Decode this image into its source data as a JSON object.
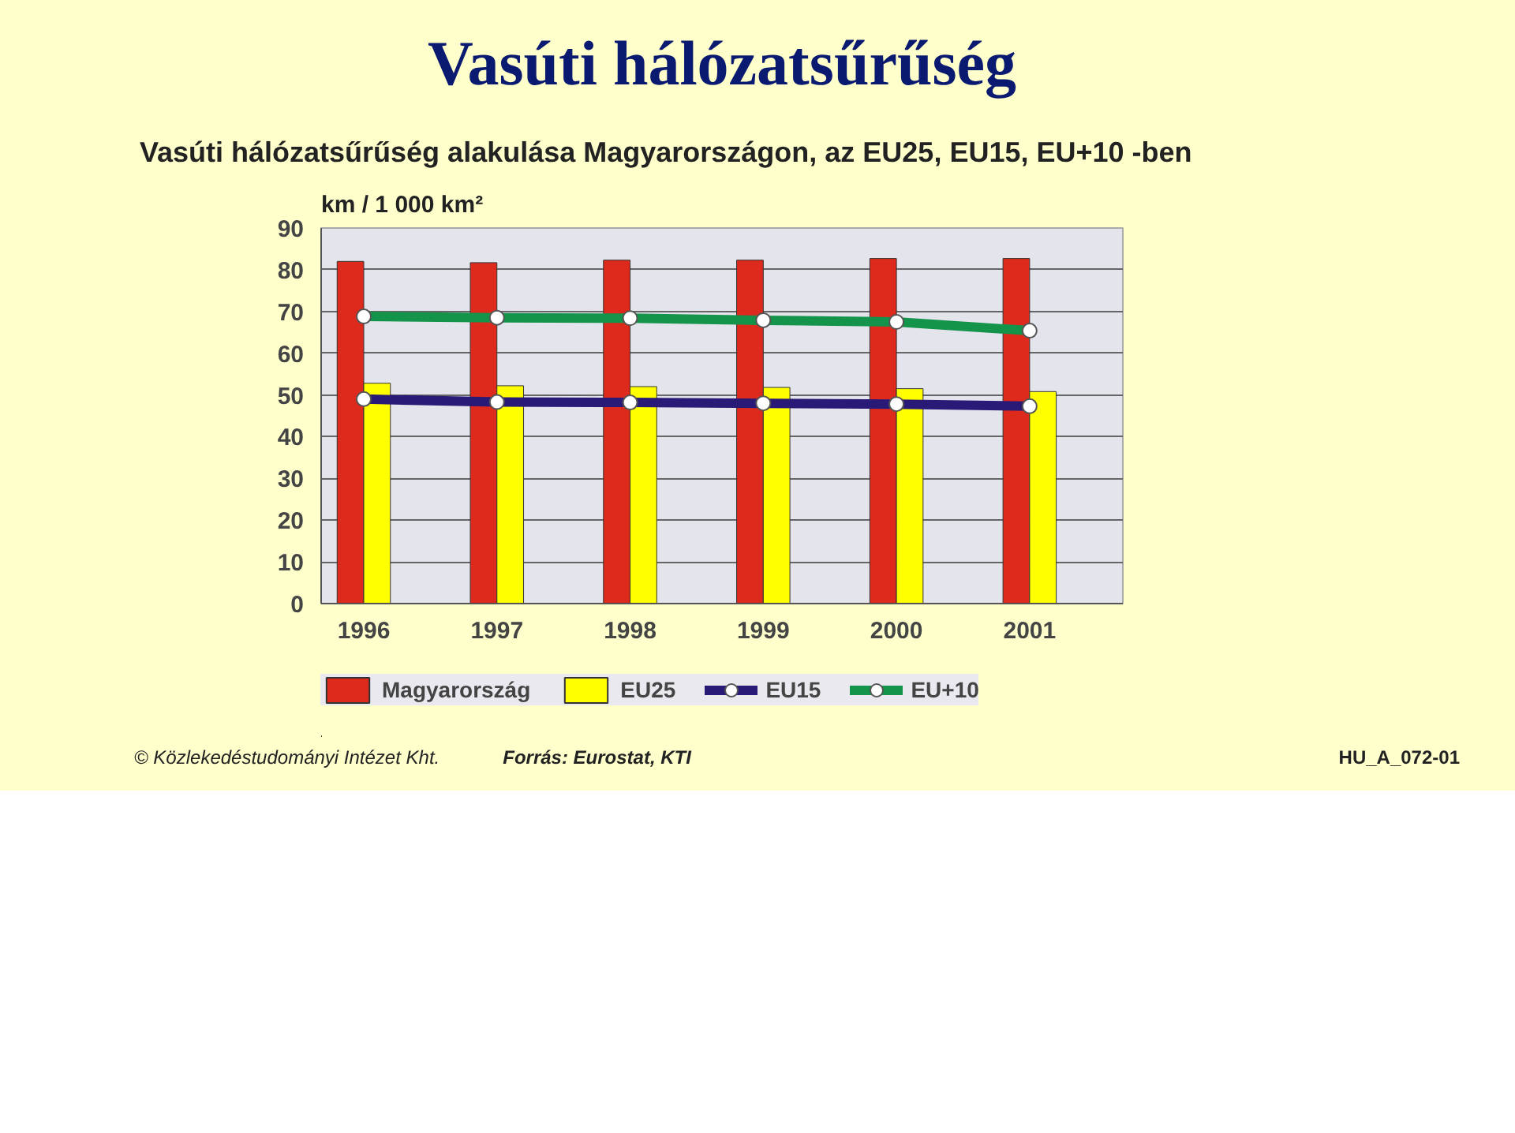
{
  "chart_data": {
    "type": "bar",
    "title": "Vasúti hálózatsűrűség",
    "subtitle": "Vasúti hálózatsűrűség alakulása Magyarországon, az EU25, EU15, EU+10 -ben",
    "ylabel": "km / 1 000 km²",
    "categories": [
      "1996",
      "1997",
      "1998",
      "1999",
      "2000",
      "2001"
    ],
    "series": [
      {
        "name": "Magyarország",
        "color": "#dd2a1c",
        "values": [
          82,
          81.7,
          82.3,
          82.3,
          82.7,
          82.7
        ]
      },
      {
        "name": "EU25",
        "color": "#ffff00",
        "values": [
          52.8,
          52.2,
          52,
          51.8,
          51.5,
          50.8
        ]
      },
      {
        "name": "EU15",
        "type": "line",
        "color": "#2a1a78",
        "values": [
          49,
          48.3,
          48.2,
          48,
          47.8,
          47.3
        ]
      },
      {
        "name": "EU+10",
        "type": "line",
        "color": "#14944a",
        "values": [
          68.8,
          68.5,
          68.4,
          67.9,
          67.5,
          65.4
        ]
      }
    ],
    "ylim": [
      0,
      90
    ],
    "yticks": [
      0,
      10,
      20,
      30,
      40,
      50,
      60,
      70,
      80,
      90
    ],
    "grid": "y",
    "legend": "bottom",
    "marker": "circle",
    "line_style": "solid",
    "annotations": [
      "© Közlekedéstudományi Intézet Kht.",
      "Forrás: Eurostat, KTI",
      "HU_A_072-01"
    ]
  }
}
